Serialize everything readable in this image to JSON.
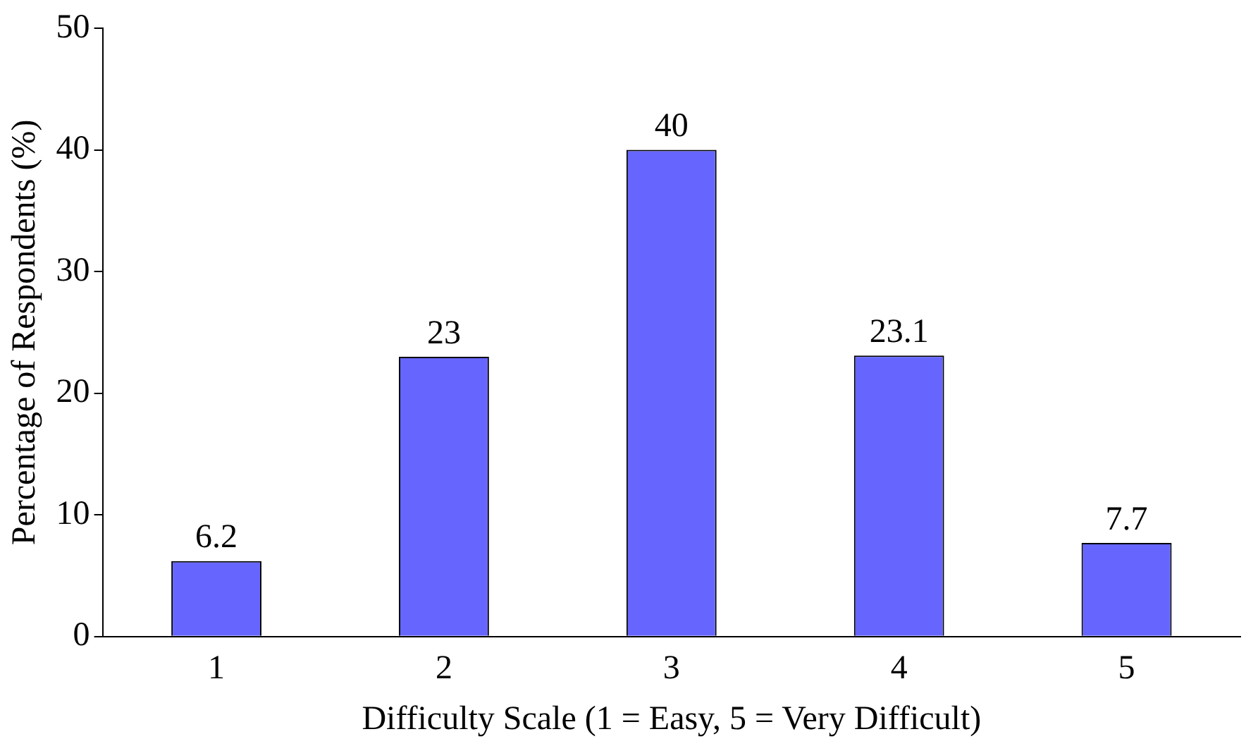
{
  "chart_data": {
    "type": "bar",
    "xlabel": "Difficulty Scale (1 = Easy, 5 = Very Difficult)",
    "ylabel": "Percentage of Respondents (%)",
    "categories": [
      "1",
      "2",
      "3",
      "4",
      "5"
    ],
    "values": [
      6.2,
      23,
      40,
      23.1,
      7.7
    ],
    "color": "#6666ff",
    "ylim": [
      0,
      50
    ],
    "yticks": [
      0,
      10,
      20,
      30,
      40,
      50
    ],
    "grid": false,
    "legend": false,
    "data_labels": true
  }
}
